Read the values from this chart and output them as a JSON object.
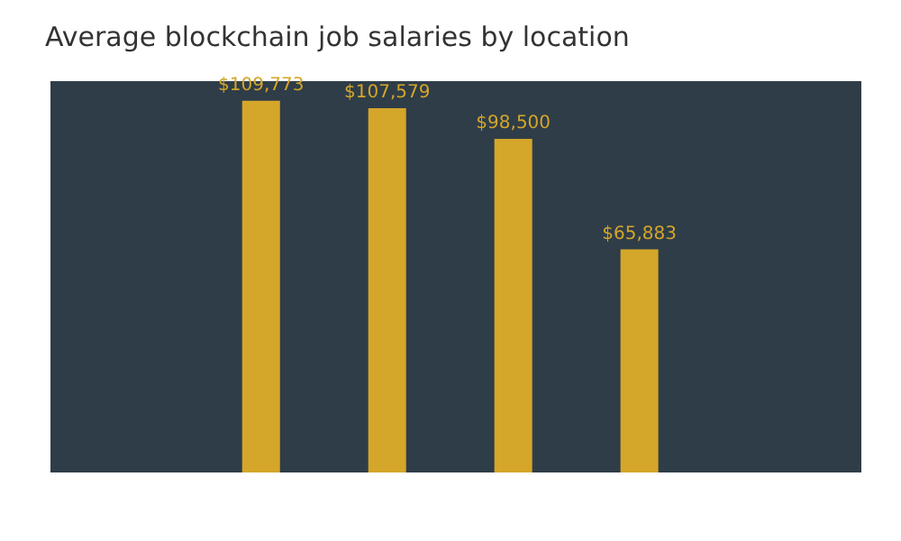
{
  "chart_data": {
    "type": "bar",
    "title": "Average blockchain job salaries by location",
    "categories": [
      null,
      null,
      null,
      null
    ],
    "values": [
      109773,
      107579,
      98500,
      65883
    ],
    "value_labels": [
      "$109,773",
      "$107,579",
      "$98,500",
      "$65,883"
    ],
    "color": "#d4a62a"
  }
}
